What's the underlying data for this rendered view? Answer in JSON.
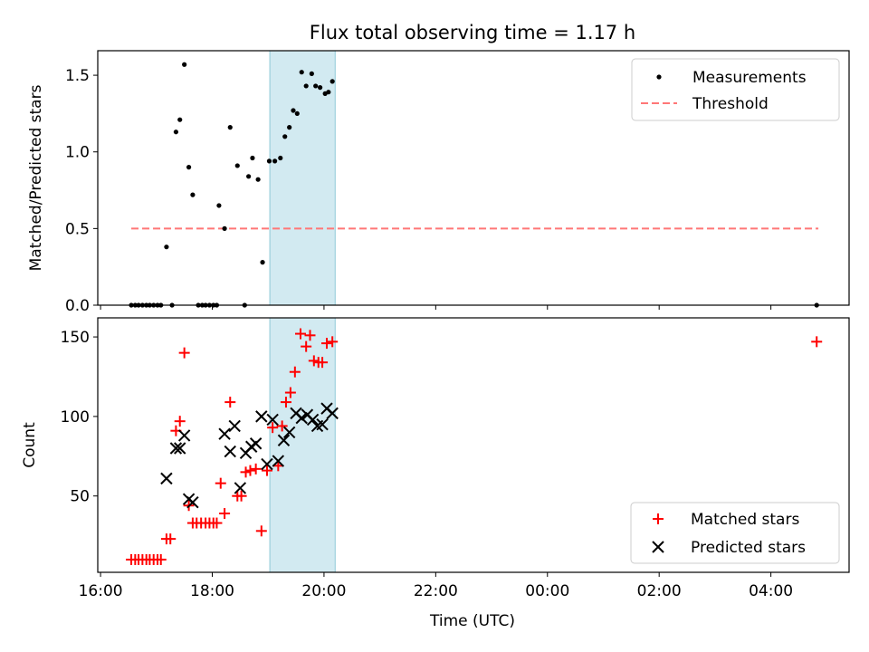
{
  "chart_data": {
    "title": "Flux total observing time = 1.17 h",
    "x_axis": {
      "xlabel": "Time (UTC)",
      "range_hours": [
        15.95,
        29.4
      ],
      "ticks": [
        {
          "value": 16,
          "label": "16:00"
        },
        {
          "value": 18,
          "label": "18:00"
        },
        {
          "value": 20,
          "label": "20:00"
        },
        {
          "value": 22,
          "label": "22:00"
        },
        {
          "value": 24,
          "label": "00:00"
        },
        {
          "value": 26,
          "label": "02:00"
        },
        {
          "value": 28,
          "label": "04:00"
        }
      ]
    },
    "shaded_span_hours": [
      19.03,
      20.2
    ],
    "colors": {
      "band": "#add8e6",
      "matched": "#ff0000",
      "predicted": "#000000",
      "threshold": "#ff7777",
      "measure": "#000000"
    },
    "panels": [
      {
        "type": "scatter",
        "ylabel": "Matched/Predicted stars",
        "ylim": [
          0,
          1.66
        ],
        "yticks": [
          {
            "value": 0,
            "label": "0.0"
          },
          {
            "value": 0.5,
            "label": "0.5"
          },
          {
            "value": 1.0,
            "label": "1.0"
          },
          {
            "value": 1.5,
            "label": "1.5"
          }
        ],
        "legend": [
          {
            "key": "measure",
            "label": "Measurements"
          },
          {
            "key": "threshold",
            "label": "Threshold"
          }
        ],
        "threshold": {
          "value": 0.5,
          "x_range": [
            16.55,
            28.85
          ]
        },
        "series": [
          {
            "name": "Measurements",
            "points": [
              [
                16.55,
                0
              ],
              [
                16.62,
                0
              ],
              [
                16.68,
                0
              ],
              [
                16.75,
                0
              ],
              [
                16.82,
                0
              ],
              [
                16.88,
                0
              ],
              [
                16.95,
                0
              ],
              [
                17.02,
                0
              ],
              [
                17.08,
                0
              ],
              [
                17.18,
                0.38
              ],
              [
                17.28,
                0
              ],
              [
                17.35,
                1.13
              ],
              [
                17.42,
                1.21
              ],
              [
                17.5,
                1.57
              ],
              [
                17.58,
                0.9
              ],
              [
                17.65,
                0.72
              ],
              [
                17.75,
                0
              ],
              [
                17.82,
                0
              ],
              [
                17.88,
                0
              ],
              [
                17.95,
                0
              ],
              [
                18.02,
                0
              ],
              [
                18.08,
                0
              ],
              [
                18.12,
                0.65
              ],
              [
                18.22,
                0.5
              ],
              [
                18.32,
                1.16
              ],
              [
                18.45,
                0.91
              ],
              [
                18.58,
                0
              ],
              [
                18.65,
                0.84
              ],
              [
                18.72,
                0.96
              ],
              [
                18.82,
                0.82
              ],
              [
                18.9,
                0.28
              ],
              [
                19.02,
                0.94
              ],
              [
                19.12,
                0.94
              ],
              [
                19.22,
                0.96
              ],
              [
                19.3,
                1.1
              ],
              [
                19.38,
                1.16
              ],
              [
                19.45,
                1.27
              ],
              [
                19.52,
                1.25
              ],
              [
                19.6,
                1.52
              ],
              [
                19.68,
                1.43
              ],
              [
                19.78,
                1.51
              ],
              [
                19.85,
                1.43
              ],
              [
                19.93,
                1.42
              ],
              [
                20.02,
                1.38
              ],
              [
                20.08,
                1.39
              ],
              [
                20.15,
                1.46
              ],
              [
                28.82,
                0
              ]
            ]
          }
        ]
      },
      {
        "type": "scatter",
        "ylabel": "Count",
        "ylim": [
          2,
          162
        ],
        "yticks": [
          {
            "value": 50,
            "label": "50"
          },
          {
            "value": 100,
            "label": "100"
          },
          {
            "value": 150,
            "label": "150"
          }
        ],
        "legend": [
          {
            "key": "matched",
            "label": "Matched stars"
          },
          {
            "key": "predicted",
            "label": "Predicted stars"
          }
        ],
        "series": [
          {
            "name": "Matched stars",
            "marker": "plus",
            "points": [
              [
                16.55,
                10
              ],
              [
                16.62,
                10
              ],
              [
                16.68,
                10
              ],
              [
                16.75,
                10
              ],
              [
                16.82,
                10
              ],
              [
                16.88,
                10
              ],
              [
                16.95,
                10
              ],
              [
                17.02,
                10
              ],
              [
                17.08,
                10
              ],
              [
                17.18,
                23
              ],
              [
                17.25,
                23
              ],
              [
                17.35,
                91
              ],
              [
                17.42,
                97
              ],
              [
                17.5,
                140
              ],
              [
                17.58,
                44
              ],
              [
                17.65,
                33
              ],
              [
                17.72,
                33
              ],
              [
                17.8,
                33
              ],
              [
                17.88,
                33
              ],
              [
                17.95,
                33
              ],
              [
                18.02,
                33
              ],
              [
                18.08,
                33
              ],
              [
                18.15,
                58
              ],
              [
                18.22,
                39
              ],
              [
                18.32,
                109
              ],
              [
                18.45,
                50
              ],
              [
                18.52,
                50
              ],
              [
                18.6,
                65
              ],
              [
                18.68,
                66
              ],
              [
                18.78,
                67
              ],
              [
                18.88,
                28
              ],
              [
                18.98,
                66
              ],
              [
                19.08,
                93
              ],
              [
                19.18,
                69
              ],
              [
                19.25,
                94
              ],
              [
                19.32,
                109
              ],
              [
                19.4,
                115
              ],
              [
                19.48,
                128
              ],
              [
                19.58,
                152
              ],
              [
                19.68,
                144
              ],
              [
                19.75,
                151
              ],
              [
                19.82,
                135
              ],
              [
                19.9,
                134
              ],
              [
                19.97,
                134
              ],
              [
                20.05,
                146
              ],
              [
                20.15,
                147
              ],
              [
                28.82,
                147
              ]
            ]
          },
          {
            "name": "Predicted stars",
            "marker": "x",
            "points": [
              [
                17.18,
                61
              ],
              [
                17.35,
                80
              ],
              [
                17.42,
                80
              ],
              [
                17.5,
                88
              ],
              [
                17.58,
                48
              ],
              [
                17.65,
                46
              ],
              [
                18.22,
                89
              ],
              [
                18.32,
                78
              ],
              [
                18.4,
                94
              ],
              [
                18.5,
                55
              ],
              [
                18.6,
                77
              ],
              [
                18.7,
                81
              ],
              [
                18.78,
                83
              ],
              [
                18.88,
                100
              ],
              [
                18.98,
                70
              ],
              [
                19.08,
                98
              ],
              [
                19.18,
                72
              ],
              [
                19.28,
                85
              ],
              [
                19.38,
                90
              ],
              [
                19.5,
                102
              ],
              [
                19.6,
                99
              ],
              [
                19.7,
                101
              ],
              [
                19.8,
                98
              ],
              [
                19.88,
                94
              ],
              [
                19.97,
                95
              ],
              [
                20.05,
                105
              ],
              [
                20.15,
                102
              ]
            ]
          }
        ]
      }
    ]
  }
}
